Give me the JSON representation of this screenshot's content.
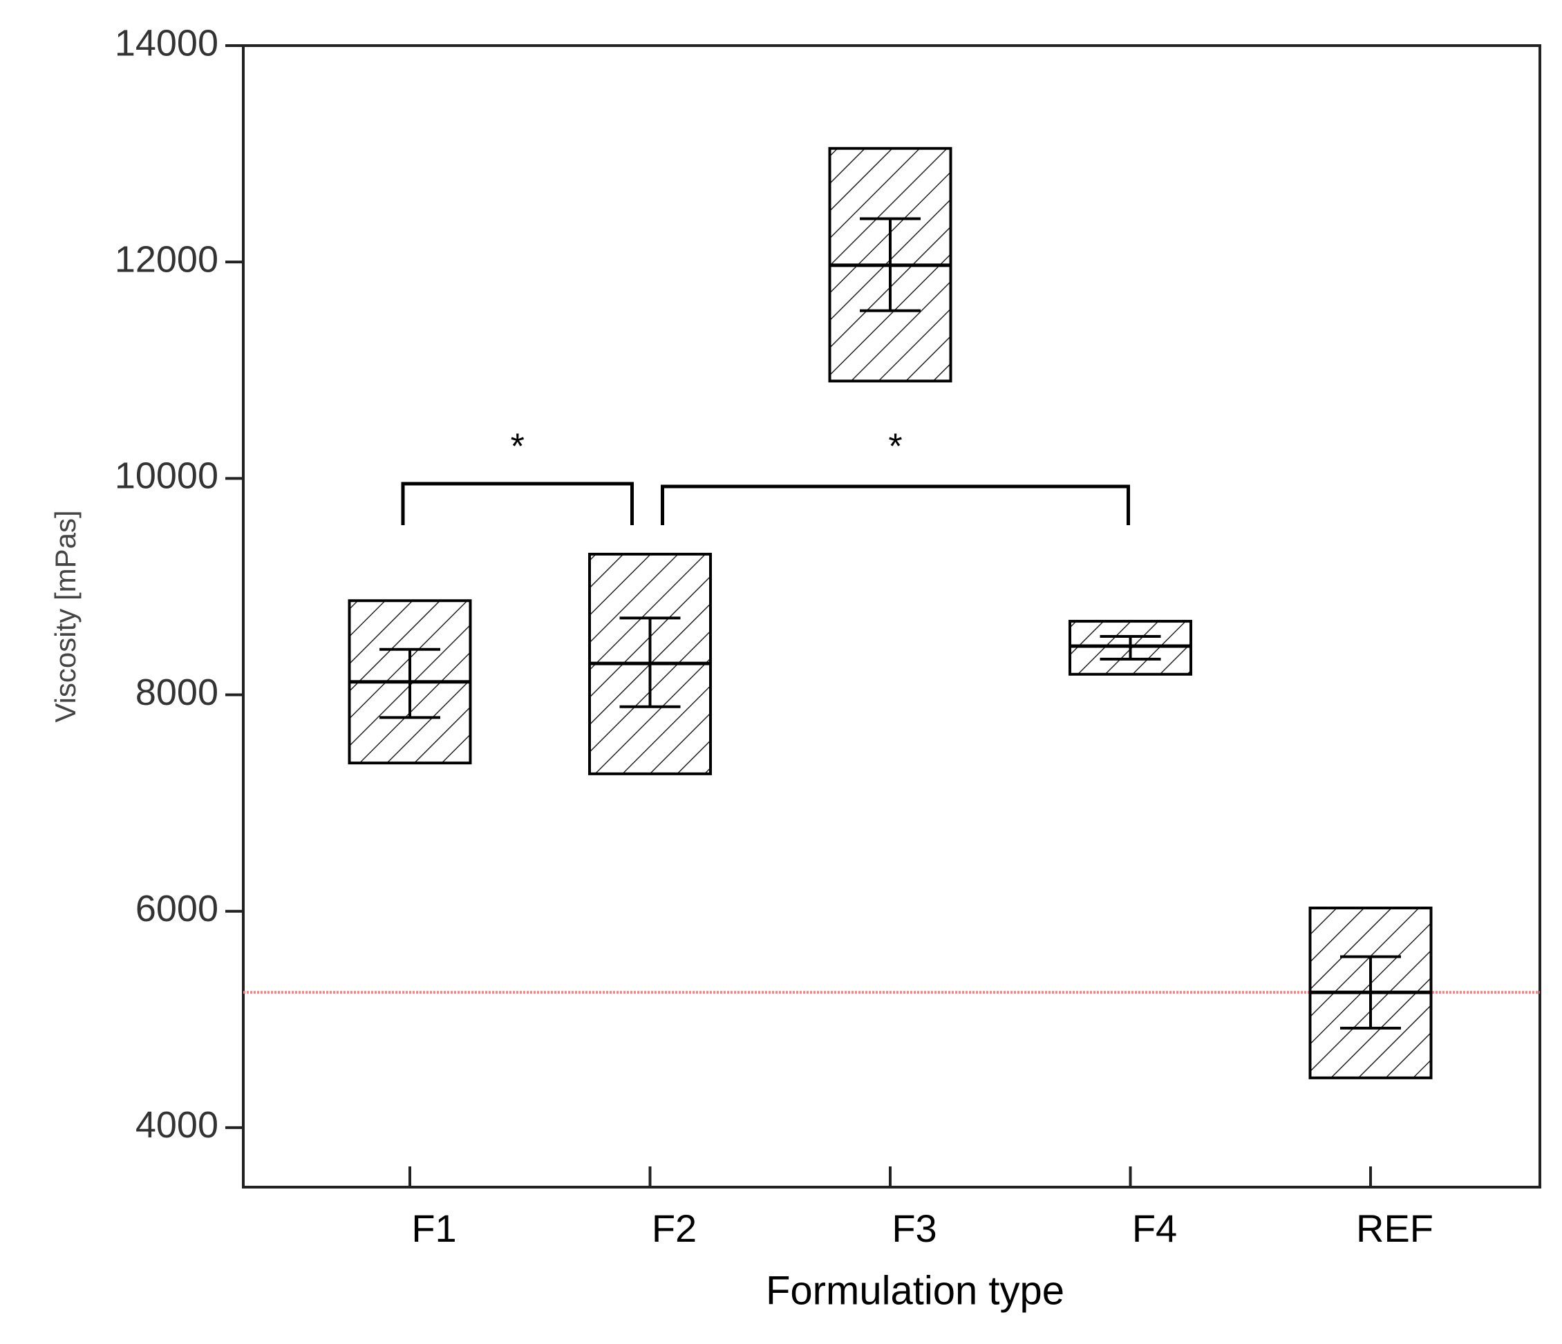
{
  "chart_data": {
    "type": "box",
    "x_label": "Formulation type",
    "y_label": "Viscosity [mPas]",
    "categories": [
      "F1",
      "F2",
      "F3",
      "F4",
      "REF"
    ],
    "box_high": [
      8870,
      9300,
      13050,
      8680,
      6030
    ],
    "box_low": [
      7370,
      7270,
      10900,
      8190,
      4460
    ],
    "means": [
      8120,
      8290,
      11970,
      8450,
      5250
    ],
    "whisker_high": [
      8420,
      8710,
      12400,
      8540,
      5580
    ],
    "whisker_low": [
      7790,
      7890,
      11550,
      8330,
      4920
    ],
    "ylim": [
      3450,
      14000
    ],
    "yticks": [
      4000,
      6000,
      8000,
      10000,
      12000,
      14000
    ],
    "reference_line": {
      "value": 5250,
      "color": "#ff8080"
    },
    "brackets": [
      {
        "label": "*",
        "categories": [
          0,
          1
        ]
      },
      {
        "label": "*",
        "categories": [
          1,
          3
        ]
      }
    ],
    "color": "#000000"
  }
}
